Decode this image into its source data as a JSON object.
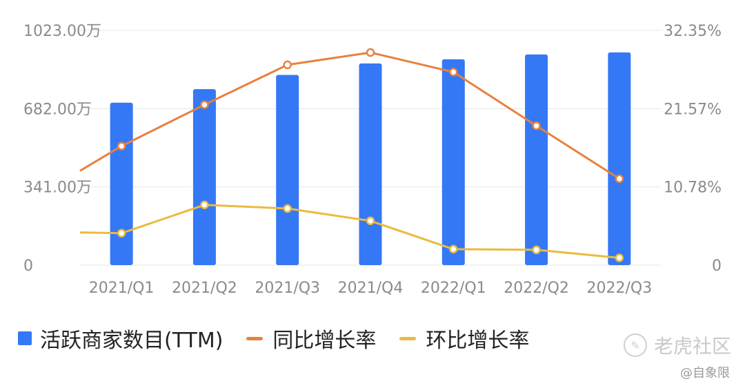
{
  "chart_data": {
    "type": "bar+line",
    "categories": [
      "2021/Q1",
      "2021/Q2",
      "2021/Q3",
      "2021/Q4",
      "2022/Q1",
      "2022/Q2",
      "2022/Q3"
    ],
    "y_left": {
      "ticks": [
        "0",
        "341.00万",
        "682.00万",
        "1023.00万"
      ],
      "range": [
        0,
        1023
      ]
    },
    "y_right": {
      "ticks": [
        "0",
        "10.78%",
        "21.57%",
        "32.35%"
      ],
      "range": [
        0,
        32.35
      ]
    },
    "series": [
      {
        "name": "活跃商家数目(TTM)",
        "type": "bar",
        "axis": "left",
        "color": "#3478f6",
        "values": [
          708,
          767,
          829,
          879,
          897,
          918,
          927
        ]
      },
      {
        "name": "同比增长率",
        "type": "line",
        "axis": "right",
        "color": "#e8803e",
        "values": [
          16.4,
          22.1,
          27.6,
          29.3,
          26.6,
          19.2,
          11.9
        ],
        "line_start_value": 13.0
      },
      {
        "name": "环比增长率",
        "type": "line",
        "axis": "right",
        "color": "#eabb3e",
        "values": [
          4.4,
          8.3,
          7.8,
          6.1,
          2.2,
          2.1,
          1.0
        ],
        "line_start_value": 4.5
      }
    ],
    "grid": true,
    "legend_position": "bottom-left"
  },
  "legend": {
    "bar_label": "活跃商家数目(TTM)",
    "yoy_label": "同比增长率",
    "qoq_label": "环比增长率"
  },
  "watermark": {
    "brand": "老虎社区",
    "author": "@自象限"
  },
  "colors": {
    "bar": "#3478f6",
    "yoy": "#e8803e",
    "qoq": "#eabb3e",
    "grid": "#e6e6e6",
    "axis_text": "#8a8a8a"
  }
}
